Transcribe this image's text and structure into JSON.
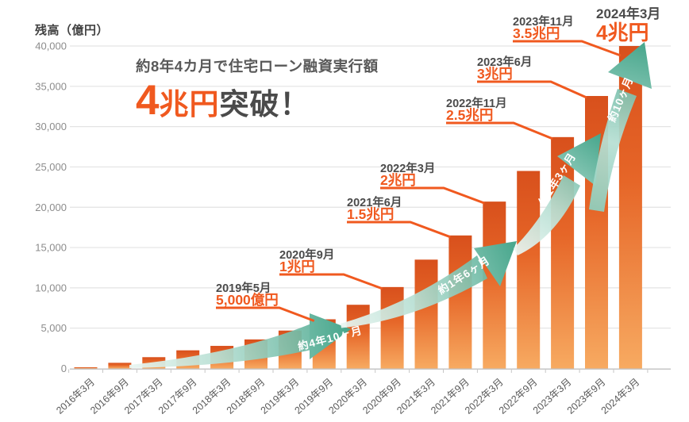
{
  "chart_data": {
    "type": "bar",
    "title_prefix": "約8年4カ月で住宅ローン融資実行額",
    "title_highlight_digit": "4",
    "title_highlight_rest": "兆円",
    "title_suffix": "突破！",
    "ylabel": "残高（億円）",
    "ylim": [
      0,
      40000
    ],
    "ytick_step": 5000,
    "ytick_labels": [
      "0",
      "5,000",
      "10,000",
      "15,000",
      "20,000",
      "25,000",
      "30,000",
      "35,000",
      "40,000"
    ],
    "categories": [
      "2016年3月",
      "2016年9月",
      "2017年3月",
      "2017年9月",
      "2018年3月",
      "2018年9月",
      "2019年3月",
      "2019年9月",
      "2020年3月",
      "2020年9月",
      "2021年3月",
      "2021年9月",
      "2022年3月",
      "2022年9月",
      "2023年3月",
      "2023年9月",
      "2024年3月"
    ],
    "values": [
      150,
      700,
      1400,
      2250,
      2800,
      3600,
      4700,
      6100,
      7900,
      10100,
      13500,
      16500,
      20700,
      24500,
      28700,
      33800,
      40000
    ],
    "annotations": [
      {
        "date": "2019年5月",
        "value": "5,000億円",
        "bar_index": 7
      },
      {
        "date": "2020年9月",
        "value": "1兆円",
        "bar_index": 9
      },
      {
        "date": "2021年6月",
        "value": "1.5兆円",
        "bar_index": 11
      },
      {
        "date": "2022年3月",
        "value": "2兆円",
        "bar_index": 12
      },
      {
        "date": "2022年11月",
        "value": "2.5兆円",
        "bar_index": 14
      },
      {
        "date": "2023年6月",
        "value": "3兆円",
        "bar_index": 15
      },
      {
        "date": "2023年11月",
        "value": "3.5兆円",
        "bar_index": 16
      },
      {
        "date": "2024年3月",
        "value": "4兆円",
        "bar_index": 16
      }
    ],
    "arrows": [
      {
        "label": "約4年10ヶ月"
      },
      {
        "label": "約1年6ヶ月"
      },
      {
        "label": "約1年3ヶ月"
      },
      {
        "label": "約10ヶ月"
      }
    ],
    "colors": {
      "accent_orange": "#f0591f",
      "bar_top": "#d8501c",
      "bar_mid": "#e66628",
      "bar_bottom": "#f7aa61",
      "arrow_teal": "#47a68c",
      "arrow_teal_light": "#eaf6f2",
      "text_dark": "#4b4b4b",
      "text_gray": "#8c8c8c",
      "grid": "#e3e3e3",
      "axis": "#c6c6c6",
      "arrow_label_text": "#ffffff"
    }
  }
}
